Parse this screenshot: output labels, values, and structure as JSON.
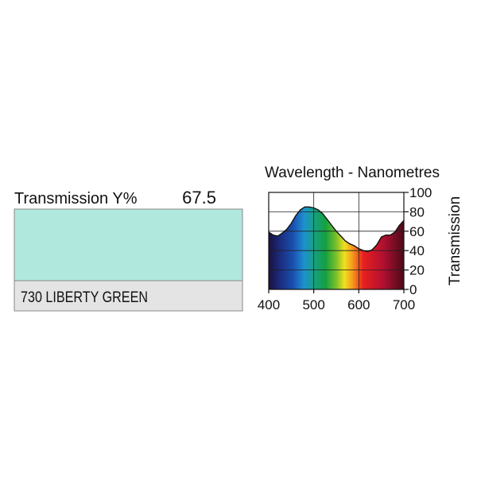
{
  "swatch": {
    "label": "Transmission Y%",
    "transmission_y": 67.5,
    "name": "730 LIBERTY GREEN",
    "color": "#b0e8de"
  },
  "chart_data": {
    "type": "area",
    "title": "Wavelength - Nanometres",
    "y_label": "Transmission",
    "x": [
      400,
      410,
      420,
      430,
      440,
      450,
      460,
      470,
      480,
      490,
      500,
      510,
      520,
      530,
      540,
      550,
      560,
      570,
      580,
      590,
      600,
      610,
      620,
      630,
      640,
      650,
      660,
      670,
      680,
      690,
      700
    ],
    "values": [
      59,
      56,
      55,
      58,
      62,
      68,
      76,
      82,
      85,
      85,
      84,
      82,
      78,
      72,
      66,
      60,
      55,
      50,
      47,
      45,
      42,
      40,
      39,
      41,
      46,
      54,
      56,
      56,
      59,
      66,
      71
    ],
    "xlim": [
      400,
      700
    ],
    "ylim": [
      0,
      100
    ],
    "xticks": [
      400,
      500,
      600,
      700
    ],
    "yticks": [
      0,
      20,
      40,
      60,
      80,
      100
    ],
    "grid": true
  }
}
